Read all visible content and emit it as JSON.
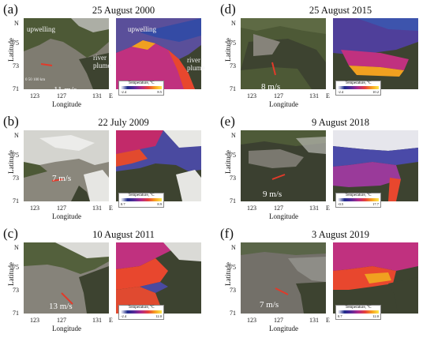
{
  "panels": [
    {
      "label": "(a)",
      "date": "25 August 2000",
      "speed": "11 m/s",
      "ann_upwelling_left": "upwelling",
      "ann_upwelling_right": "upwelling",
      "ann_river": "river",
      "ann_plume": "plume",
      "ann_river_r": "river",
      "ann_plume_r": "plume",
      "scale": "0   50   100 km",
      "cbar_title": "Temperature, °C",
      "cbar_min": "-2.4",
      "cbar_max": "8.5",
      "xlabel": "Longitude"
    },
    {
      "label": "(b)",
      "date": "22 July 2009",
      "speed": "7 m/s",
      "cbar_title": "Temperature, °C",
      "cbar_min": "0.7",
      "cbar_max": "8.9",
      "xlabel": "Longitude"
    },
    {
      "label": "(c)",
      "date": "10 August 2011",
      "speed": "13 m/s",
      "cbar_title": "Temperature, °C",
      "cbar_min": "-2.4",
      "cbar_max": "12.0",
      "xlabel": "Longitude"
    },
    {
      "label": "(d)",
      "date": "25 August 2015",
      "speed": "8 m/s",
      "cbar_title": "Temperature, °C",
      "cbar_min": "-2.4",
      "cbar_max": "10.2",
      "xlabel": "Longitude"
    },
    {
      "label": "(e)",
      "date": "9 August 2018",
      "speed": "9 m/s",
      "cbar_title": "Temperature, °C",
      "cbar_min": "-0.5",
      "cbar_max": "17.7",
      "xlabel": "Longitude"
    },
    {
      "label": "(f)",
      "date": "3 August 2019",
      "speed": "7 m/s",
      "cbar_title": "Temperature, °C",
      "cbar_min": "0.7",
      "cbar_max": "12.0",
      "xlabel": "Longitude"
    }
  ],
  "axis": {
    "ylabel": "Latitude",
    "yticks": [
      "N",
      "75",
      "73",
      "71"
    ],
    "xticks": [
      "123",
      "127",
      "131",
      "E"
    ]
  },
  "colors": {
    "land": "#4f5a3a",
    "sea": "#7d7a70",
    "cloud": "#cfcfcf",
    "sst_cold": "#1e2b8a",
    "sst_mid": "#b12a8a",
    "sst_warm": "#f7a020",
    "wind_arrow": "#e23a2a"
  }
}
